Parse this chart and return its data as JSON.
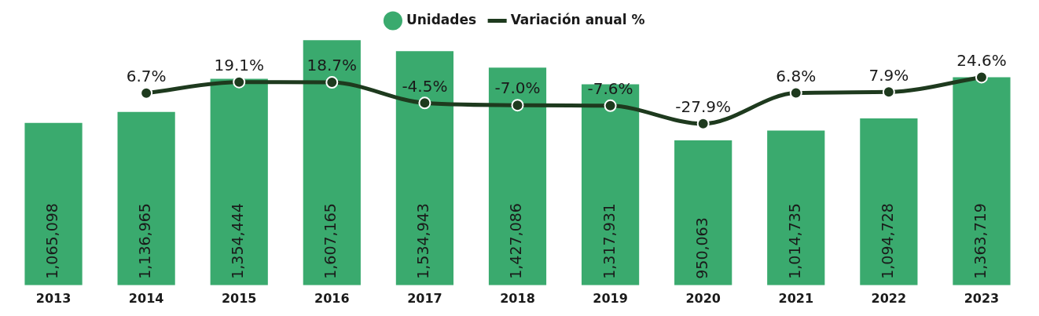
{
  "chart_data": {
    "type": "bar",
    "categories": [
      "2013",
      "2014",
      "2015",
      "2016",
      "2017",
      "2018",
      "2019",
      "2020",
      "2021",
      "2022",
      "2023"
    ],
    "series": [
      {
        "name": "Unidades",
        "color": "#3aaa6e",
        "values": [
          1065098,
          1136965,
          1354444,
          1607165,
          1534943,
          1427086,
          1317931,
          950063,
          1014735,
          1094728,
          1363719
        ],
        "value_labels": [
          "1,065,098",
          "1,136,965",
          "1,354,444",
          "1,607,165",
          "1,534,943",
          "1,427,086",
          "1,317,931",
          "950,063",
          "1,014,735",
          "1,094,728",
          "1,363,719"
        ]
      },
      {
        "name": "Variación anual %",
        "type": "line",
        "axis": "y2",
        "color": "#1e3a1e",
        "values": [
          null,
          6.7,
          19.1,
          18.7,
          -4.5,
          -7.0,
          -7.6,
          -27.9,
          6.8,
          7.9,
          24.6
        ],
        "value_labels": [
          null,
          "6.7%",
          "19.1%",
          "18.7%",
          "-4.5%",
          "-7.0%",
          "-7.6%",
          "-27.9%",
          "6.8%",
          "7.9%",
          "24.6%"
        ]
      }
    ],
    "legend": "top",
    "marker": "circle",
    "tick_labels": "x",
    "grid": false
  }
}
